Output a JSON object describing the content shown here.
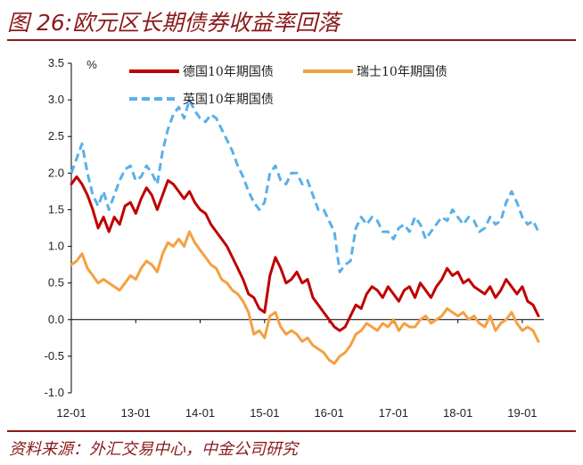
{
  "title": "图 26:欧元区长期债券收益率回落",
  "source": "资料来源：外汇交易中心，中金公司研究",
  "chart_data": {
    "type": "line",
    "unit_label": "%",
    "ylim": [
      -1.0,
      3.5
    ],
    "yticks": [
      "3.5",
      "3.0",
      "2.5",
      "2.0",
      "1.5",
      "1.0",
      "0.5",
      "0.0",
      "-0.5",
      "-1.0"
    ],
    "xticks": [
      "12-01",
      "13-01",
      "14-01",
      "15-01",
      "16-01",
      "17-01",
      "18-01",
      "19-01"
    ],
    "xrange": [
      0,
      88
    ],
    "legend_position": "top",
    "grid": false,
    "series": [
      {
        "name": "德国10年期国债",
        "color": "#c00000",
        "style": "solid",
        "x": [
          0,
          1,
          2,
          3,
          4,
          5,
          6,
          7,
          8,
          9,
          10,
          11,
          12,
          13,
          14,
          15,
          16,
          17,
          18,
          19,
          20,
          21,
          22,
          23,
          24,
          25,
          26,
          27,
          28,
          29,
          30,
          31,
          32,
          33,
          34,
          35,
          36,
          37,
          38,
          39,
          40,
          41,
          42,
          43,
          44,
          45,
          46,
          47,
          48,
          49,
          50,
          51,
          52,
          53,
          54,
          55,
          56,
          57,
          58,
          59,
          60,
          61,
          62,
          63,
          64,
          65,
          66,
          67,
          68,
          69,
          70,
          71,
          72,
          73,
          74,
          75,
          76,
          77,
          78,
          79,
          80,
          81,
          82,
          83,
          84,
          85,
          86,
          87
        ],
        "values": [
          1.85,
          1.95,
          1.85,
          1.7,
          1.5,
          1.25,
          1.4,
          1.2,
          1.4,
          1.3,
          1.55,
          1.6,
          1.45,
          1.65,
          1.8,
          1.7,
          1.5,
          1.7,
          1.9,
          1.85,
          1.75,
          1.65,
          1.75,
          1.6,
          1.5,
          1.45,
          1.3,
          1.2,
          1.1,
          1.0,
          0.85,
          0.7,
          0.55,
          0.35,
          0.3,
          0.15,
          0.1,
          0.6,
          0.85,
          0.7,
          0.5,
          0.55,
          0.65,
          0.5,
          0.55,
          0.3,
          0.2,
          0.1,
          0.0,
          -0.1,
          -0.15,
          -0.1,
          0.05,
          0.2,
          0.15,
          0.35,
          0.45,
          0.4,
          0.3,
          0.45,
          0.35,
          0.25,
          0.4,
          0.45,
          0.3,
          0.5,
          0.4,
          0.3,
          0.45,
          0.55,
          0.7,
          0.6,
          0.65,
          0.5,
          0.55,
          0.45,
          0.4,
          0.35,
          0.45,
          0.3,
          0.4,
          0.55,
          0.45,
          0.35,
          0.45,
          0.25,
          0.2,
          0.05
        ]
      },
      {
        "name": "瑞士10年期国债",
        "color": "#f4a040",
        "style": "solid",
        "x": [
          0,
          1,
          2,
          3,
          4,
          5,
          6,
          7,
          8,
          9,
          10,
          11,
          12,
          13,
          14,
          15,
          16,
          17,
          18,
          19,
          20,
          21,
          22,
          23,
          24,
          25,
          26,
          27,
          28,
          29,
          30,
          31,
          32,
          33,
          34,
          35,
          36,
          37,
          38,
          39,
          40,
          41,
          42,
          43,
          44,
          45,
          46,
          47,
          48,
          49,
          50,
          51,
          52,
          53,
          54,
          55,
          56,
          57,
          58,
          59,
          60,
          61,
          62,
          63,
          64,
          65,
          66,
          67,
          68,
          69,
          70,
          71,
          72,
          73,
          74,
          75,
          76,
          77,
          78,
          79,
          80,
          81,
          82,
          83,
          84,
          85,
          86,
          87
        ],
        "values": [
          0.75,
          0.8,
          0.9,
          0.7,
          0.6,
          0.5,
          0.55,
          0.5,
          0.45,
          0.4,
          0.5,
          0.6,
          0.55,
          0.7,
          0.8,
          0.75,
          0.65,
          0.9,
          1.05,
          1.0,
          1.1,
          1.0,
          1.2,
          1.05,
          0.95,
          0.85,
          0.75,
          0.7,
          0.55,
          0.5,
          0.4,
          0.35,
          0.25,
          0.1,
          -0.2,
          -0.15,
          -0.25,
          0.05,
          0.1,
          -0.1,
          -0.2,
          -0.15,
          -0.2,
          -0.3,
          -0.25,
          -0.35,
          -0.4,
          -0.45,
          -0.55,
          -0.6,
          -0.5,
          -0.45,
          -0.35,
          -0.2,
          -0.15,
          -0.05,
          -0.1,
          -0.15,
          -0.05,
          -0.1,
          0.0,
          -0.15,
          -0.05,
          -0.1,
          -0.1,
          0.0,
          0.05,
          -0.05,
          0.0,
          0.05,
          0.15,
          0.1,
          0.05,
          0.1,
          0.0,
          0.05,
          -0.05,
          -0.1,
          0.05,
          -0.15,
          -0.05,
          0.0,
          0.1,
          -0.05,
          -0.15,
          -0.1,
          -0.15,
          -0.3
        ]
      },
      {
        "name": "英国10年期国债",
        "color": "#5ab0e8",
        "style": "dashed",
        "x": [
          0,
          1,
          2,
          3,
          4,
          5,
          6,
          7,
          8,
          9,
          10,
          11,
          12,
          13,
          14,
          15,
          16,
          17,
          18,
          19,
          20,
          21,
          22,
          23,
          24,
          25,
          26,
          27,
          28,
          29,
          30,
          31,
          32,
          33,
          34,
          35,
          36,
          37,
          38,
          39,
          40,
          41,
          42,
          43,
          44,
          45,
          46,
          47,
          48,
          49,
          50,
          51,
          52,
          53,
          54,
          55,
          56,
          57,
          58,
          59,
          60,
          61,
          62,
          63,
          64,
          65,
          66,
          67,
          68,
          69,
          70,
          71,
          72,
          73,
          74,
          75,
          76,
          77,
          78,
          79,
          80,
          81,
          82,
          83,
          84,
          85,
          86,
          87
        ],
        "values": [
          2.0,
          2.2,
          2.4,
          2.0,
          1.7,
          1.55,
          1.75,
          1.5,
          1.7,
          1.9,
          2.05,
          2.1,
          1.9,
          1.95,
          2.1,
          2.0,
          1.85,
          2.3,
          2.6,
          2.8,
          2.9,
          2.75,
          3.0,
          2.85,
          2.75,
          2.7,
          2.8,
          2.75,
          2.6,
          2.45,
          2.3,
          2.1,
          1.95,
          1.75,
          1.6,
          1.5,
          1.6,
          2.0,
          2.1,
          1.9,
          1.85,
          2.0,
          2.0,
          1.85,
          1.9,
          1.7,
          1.5,
          1.5,
          1.35,
          1.2,
          0.65,
          0.75,
          0.8,
          1.25,
          1.4,
          1.3,
          1.4,
          1.35,
          1.2,
          1.2,
          1.1,
          1.25,
          1.3,
          1.2,
          1.4,
          1.3,
          1.1,
          1.2,
          1.3,
          1.4,
          1.35,
          1.5,
          1.4,
          1.3,
          1.4,
          1.35,
          1.2,
          1.25,
          1.4,
          1.3,
          1.35,
          1.6,
          1.75,
          1.6,
          1.4,
          1.3,
          1.35,
          1.2
        ]
      }
    ]
  }
}
